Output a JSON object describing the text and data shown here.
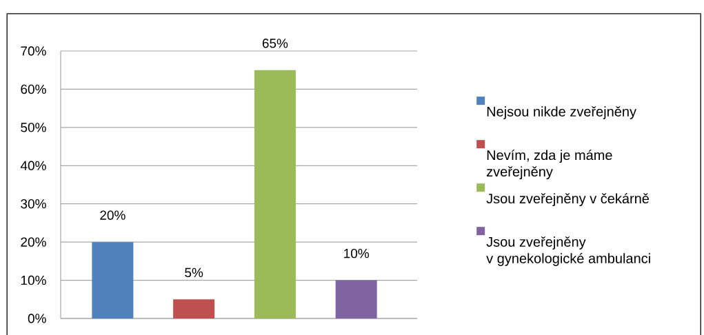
{
  "chart_data": {
    "type": "bar",
    "categories": [
      null,
      null,
      null,
      null
    ],
    "series": [
      {
        "name": "Nejsou nikde zveřejněny",
        "color": "#4f81bd",
        "values": [
          20,
          null,
          null,
          null
        ],
        "value_labels": [
          "20%",
          null,
          null,
          null
        ]
      },
      {
        "name": "Nevím, zda je máme zveřejněny",
        "color": "#c0504d",
        "values": [
          null,
          5,
          null,
          null
        ],
        "value_labels": [
          null,
          "5%",
          null,
          null
        ]
      },
      {
        "name": "Jsou zveřejněny v čekárně",
        "color": "#9bbb59",
        "values": [
          null,
          null,
          65,
          null
        ],
        "value_labels": [
          null,
          null,
          "65%",
          null
        ]
      },
      {
        "name": "Jsou zveřejněny v gynekologické ambulanci",
        "color": "#8064a2",
        "values": [
          null,
          null,
          null,
          10
        ],
        "value_labels": [
          null,
          null,
          null,
          "10%"
        ]
      }
    ],
    "ylim": [
      0,
      70
    ],
    "yticks": [
      {
        "value": 0,
        "label": "0%"
      },
      {
        "value": 10,
        "label": "10%"
      },
      {
        "value": 20,
        "label": "20%"
      },
      {
        "value": 30,
        "label": "30%"
      },
      {
        "value": 40,
        "label": "40%"
      },
      {
        "value": 50,
        "label": "50%"
      },
      {
        "value": 60,
        "label": "60%"
      },
      {
        "value": 70,
        "label": "70%"
      }
    ],
    "grid": "y",
    "legend": "right"
  }
}
